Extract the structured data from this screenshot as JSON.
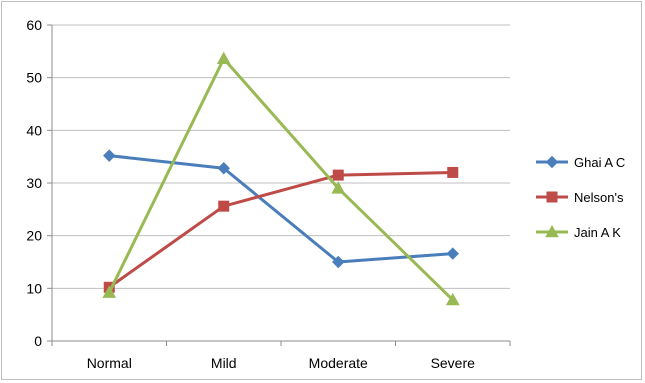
{
  "chart_data": {
    "type": "line",
    "categories": [
      "Normal",
      "Mild",
      "Moderate",
      "Severe"
    ],
    "ylim": [
      0,
      60
    ],
    "yticks": [
      0,
      10,
      20,
      30,
      40,
      50,
      60
    ],
    "grid": true,
    "legend_position": "right",
    "series": [
      {
        "name": "Ghai A C",
        "values": [
          35.2,
          32.8,
          15.0,
          16.6
        ],
        "color": "#4a7ebb",
        "marker": "diamond"
      },
      {
        "name": "Nelson's",
        "values": [
          10.2,
          25.6,
          31.5,
          32.0
        ],
        "color": "#be4b48",
        "marker": "square"
      },
      {
        "name": "Jain A K",
        "values": [
          9.2,
          53.6,
          29.0,
          7.8
        ],
        "color": "#98b954",
        "marker": "triangle"
      }
    ]
  }
}
